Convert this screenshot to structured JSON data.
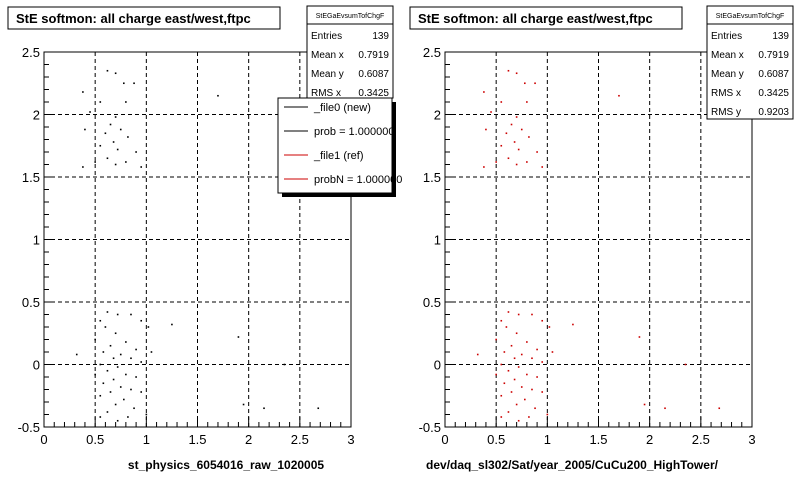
{
  "panels": [
    {
      "title": "StE softmon: all charge east/west,ftpc",
      "xlabel": "st_physics_6054016_raw_1020005",
      "stats": {
        "name": "StEGaEvsumTofChgF",
        "rows": [
          {
            "label": "Entries",
            "value": "139"
          },
          {
            "label": "Mean x",
            "value": "0.7919"
          },
          {
            "label": "Mean y",
            "value": "0.6087"
          },
          {
            "label": "RMS x",
            "value": "0.3425"
          }
        ]
      },
      "legend": [
        {
          "label": "_file0 (new)",
          "color": "#000000"
        },
        {
          "label": "prob = 1.000000",
          "color": "#000000"
        },
        {
          "label": "_file1 (ref)",
          "color": "#cc0000"
        },
        {
          "label": "probN = 1.000000",
          "color": "#cc0000"
        }
      ]
    },
    {
      "title": "StE softmon: all charge east/west,ftpc",
      "xlabel": "dev/daq_sl302/Sat/year_2005/CuCu200_HighTower/",
      "stats": {
        "name": "StEGaEvsumTofChgF",
        "rows": [
          {
            "label": "Entries",
            "value": "139"
          },
          {
            "label": "Mean x",
            "value": "0.7919"
          },
          {
            "label": "Mean y",
            "value": "0.6087"
          },
          {
            "label": "RMS x",
            "value": "0.3425"
          },
          {
            "label": "RMS y",
            "value": "0.9203"
          }
        ]
      }
    }
  ],
  "chart_data": [
    {
      "type": "scatter",
      "title": "StE softmon: all charge east/west,ftpc",
      "xlabel": "st_physics_6054016_raw_1020005",
      "xlim": [
        0,
        3
      ],
      "ylim": [
        -0.5,
        2.5
      ],
      "xticks": [
        "0",
        "0.5",
        "1",
        "1.5",
        "2",
        "2.5",
        "3"
      ],
      "yticks": [
        "-0.5",
        "0",
        "0.5",
        "1",
        "1.5",
        "2",
        "2.5"
      ],
      "grid": true,
      "marker_color": "#000000",
      "points": [
        [
          0.62,
          2.35
        ],
        [
          0.7,
          2.33
        ],
        [
          0.78,
          2.25
        ],
        [
          0.88,
          2.25
        ],
        [
          0.38,
          2.18
        ],
        [
          0.55,
          2.1
        ],
        [
          0.8,
          2.1
        ],
        [
          0.45,
          2.02
        ],
        [
          0.7,
          1.98
        ],
        [
          0.65,
          1.92
        ],
        [
          0.4,
          1.88
        ],
        [
          0.75,
          1.88
        ],
        [
          0.6,
          1.85
        ],
        [
          0.82,
          1.82
        ],
        [
          0.68,
          1.78
        ],
        [
          0.55,
          1.75
        ],
        [
          0.72,
          1.72
        ],
        [
          0.9,
          1.7
        ],
        [
          0.62,
          1.65
        ],
        [
          0.8,
          1.62
        ],
        [
          0.5,
          1.62
        ],
        [
          0.7,
          1.6
        ],
        [
          0.95,
          1.58
        ],
        [
          0.38,
          1.58
        ],
        [
          1.7,
          2.15
        ],
        [
          0.62,
          0.42
        ],
        [
          0.72,
          0.4
        ],
        [
          0.85,
          0.4
        ],
        [
          0.55,
          0.35
        ],
        [
          0.95,
          0.35
        ],
        [
          0.6,
          0.3
        ],
        [
          0.7,
          0.25
        ],
        [
          1.02,
          0.3
        ],
        [
          1.25,
          0.32
        ],
        [
          0.5,
          0.2
        ],
        [
          0.8,
          0.18
        ],
        [
          0.65,
          0.15
        ],
        [
          0.9,
          0.12
        ],
        [
          0.58,
          0.1
        ],
        [
          0.75,
          0.08
        ],
        [
          0.85,
          0.05
        ],
        [
          0.32,
          0.08
        ],
        [
          0.68,
          0.05
        ],
        [
          1.05,
          0.1
        ],
        [
          0.95,
          0.02
        ],
        [
          0.55,
          0.0
        ],
        [
          0.72,
          -0.02
        ],
        [
          0.62,
          -0.05
        ],
        [
          0.8,
          -0.08
        ],
        [
          0.5,
          -0.08
        ],
        [
          0.9,
          -0.1
        ],
        [
          0.68,
          -0.12
        ],
        [
          0.58,
          -0.15
        ],
        [
          0.75,
          -0.18
        ],
        [
          0.85,
          -0.2
        ],
        [
          0.65,
          -0.22
        ],
        [
          0.95,
          -0.22
        ],
        [
          0.55,
          -0.25
        ],
        [
          0.78,
          -0.28
        ],
        [
          0.7,
          -0.32
        ],
        [
          0.88,
          -0.35
        ],
        [
          0.62,
          -0.38
        ],
        [
          1.0,
          -0.4
        ],
        [
          0.55,
          -0.42
        ],
        [
          0.82,
          -0.42
        ],
        [
          0.72,
          -0.45
        ],
        [
          2.15,
          -0.35
        ],
        [
          2.68,
          -0.35
        ],
        [
          1.95,
          -0.32
        ],
        [
          2.35,
          0.0
        ],
        [
          1.9,
          0.22
        ]
      ]
    },
    {
      "type": "scatter",
      "title": "StE softmon: all charge east/west,ftpc",
      "xlabel": "dev/daq_sl302/Sat/year_2005/CuCu200_HighTower/",
      "xlim": [
        0,
        3
      ],
      "ylim": [
        -0.5,
        2.5
      ],
      "xticks": [
        "0",
        "0.5",
        "1",
        "1.5",
        "2",
        "2.5",
        "3"
      ],
      "yticks": [
        "-0.5",
        "0",
        "0.5",
        "1",
        "1.5",
        "2",
        "2.5"
      ],
      "grid": true,
      "marker_color": "#cc0000",
      "points": [
        [
          0.62,
          2.35
        ],
        [
          0.7,
          2.33
        ],
        [
          0.78,
          2.25
        ],
        [
          0.88,
          2.25
        ],
        [
          0.38,
          2.18
        ],
        [
          0.55,
          2.1
        ],
        [
          0.8,
          2.1
        ],
        [
          0.45,
          2.02
        ],
        [
          0.7,
          1.98
        ],
        [
          0.65,
          1.92
        ],
        [
          0.4,
          1.88
        ],
        [
          0.75,
          1.88
        ],
        [
          0.6,
          1.85
        ],
        [
          0.82,
          1.82
        ],
        [
          0.68,
          1.78
        ],
        [
          0.55,
          1.75
        ],
        [
          0.72,
          1.72
        ],
        [
          0.9,
          1.7
        ],
        [
          0.62,
          1.65
        ],
        [
          0.8,
          1.62
        ],
        [
          0.5,
          1.62
        ],
        [
          0.7,
          1.6
        ],
        [
          0.95,
          1.58
        ],
        [
          0.38,
          1.58
        ],
        [
          1.7,
          2.15
        ],
        [
          0.62,
          0.42
        ],
        [
          0.72,
          0.4
        ],
        [
          0.85,
          0.4
        ],
        [
          0.55,
          0.35
        ],
        [
          0.95,
          0.35
        ],
        [
          0.6,
          0.3
        ],
        [
          0.7,
          0.25
        ],
        [
          1.02,
          0.3
        ],
        [
          1.25,
          0.32
        ],
        [
          0.5,
          0.2
        ],
        [
          0.8,
          0.18
        ],
        [
          0.65,
          0.15
        ],
        [
          0.9,
          0.12
        ],
        [
          0.58,
          0.1
        ],
        [
          0.75,
          0.08
        ],
        [
          0.85,
          0.05
        ],
        [
          0.32,
          0.08
        ],
        [
          0.68,
          0.05
        ],
        [
          1.05,
          0.1
        ],
        [
          0.95,
          0.02
        ],
        [
          0.55,
          0.0
        ],
        [
          0.72,
          -0.02
        ],
        [
          0.62,
          -0.05
        ],
        [
          0.8,
          -0.08
        ],
        [
          0.5,
          -0.08
        ],
        [
          0.9,
          -0.1
        ],
        [
          0.68,
          -0.12
        ],
        [
          0.58,
          -0.15
        ],
        [
          0.75,
          -0.18
        ],
        [
          0.85,
          -0.2
        ],
        [
          0.65,
          -0.22
        ],
        [
          0.95,
          -0.22
        ],
        [
          0.55,
          -0.25
        ],
        [
          0.78,
          -0.28
        ],
        [
          0.7,
          -0.32
        ],
        [
          0.88,
          -0.35
        ],
        [
          0.62,
          -0.38
        ],
        [
          1.0,
          -0.4
        ],
        [
          0.55,
          -0.42
        ],
        [
          0.82,
          -0.42
        ],
        [
          0.72,
          -0.45
        ],
        [
          2.15,
          -0.35
        ],
        [
          2.68,
          -0.35
        ],
        [
          1.95,
          -0.32
        ],
        [
          2.35,
          0.0
        ],
        [
          1.9,
          0.22
        ]
      ]
    }
  ]
}
